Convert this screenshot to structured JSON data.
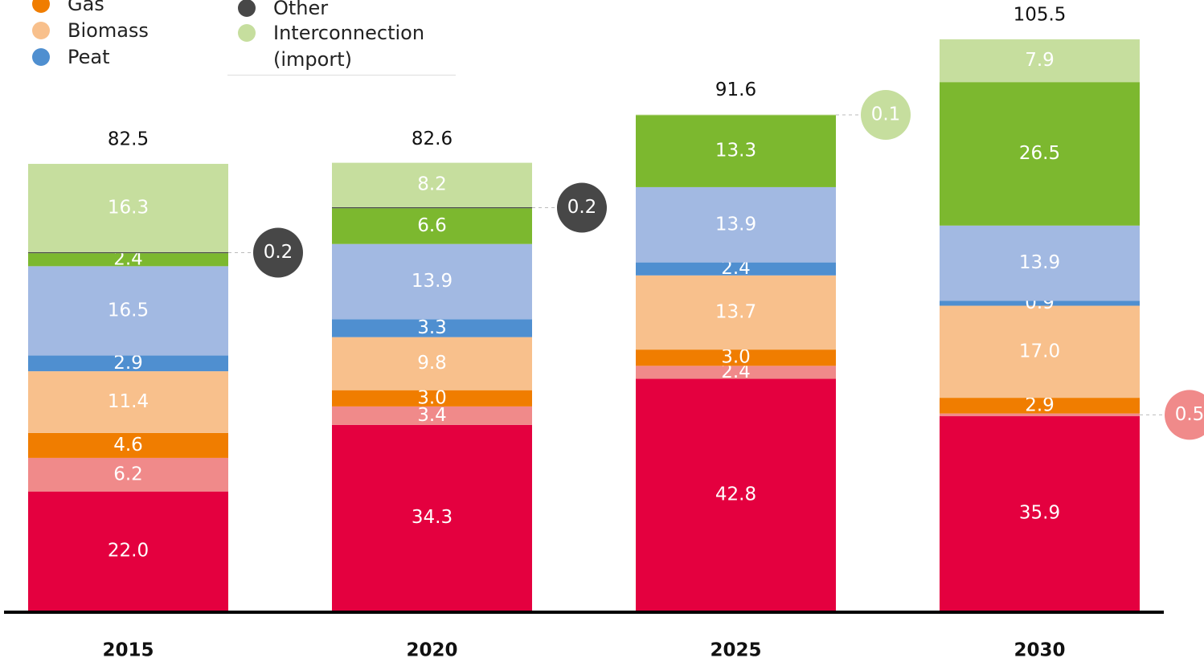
{
  "chart_data": {
    "type": "stacked-bar",
    "categories": [
      "2015",
      "2020",
      "2025",
      "2030"
    ],
    "totals": [
      82.5,
      82.6,
      91.6,
      105.5
    ],
    "series": [
      {
        "color": "#e4003f",
        "values": [
          22.0,
          34.3,
          42.8,
          35.9
        ],
        "value_labels": [
          "22.0",
          "34.3",
          "42.8",
          "35.9"
        ]
      },
      {
        "color": "#f08a8a",
        "values": [
          6.2,
          3.4,
          2.4,
          0.5
        ]
      },
      {
        "name": "Gas",
        "color": "#f07d00",
        "values": [
          4.6,
          3.0,
          3.0,
          2.9
        ],
        "value_labels": [
          "4.6",
          "3.0",
          "3.0",
          "2.9"
        ]
      },
      {
        "name": "Biomass",
        "color": "#f8c08c",
        "values": [
          11.4,
          9.8,
          13.7,
          17.0
        ],
        "value_labels": [
          "11.4",
          "9.8",
          "13.7",
          "17.0"
        ]
      },
      {
        "name": "Peat",
        "color": "#4f8fd0",
        "values": [
          2.9,
          3.3,
          2.4,
          0.9
        ]
      },
      {
        "color": "#a2b9e2",
        "values": [
          16.5,
          13.9,
          13.9,
          13.9
        ]
      },
      {
        "color": "#7cb82f",
        "values": [
          2.4,
          6.6,
          13.3,
          26.5
        ]
      },
      {
        "name": "Other",
        "color": "#474747",
        "values": [
          0.2,
          0.2,
          null,
          null
        ]
      },
      {
        "name": "Interconnection (import)",
        "color": "#c6de9e",
        "values": [
          16.3,
          8.2,
          0.1,
          7.9
        ]
      }
    ]
  }
}
